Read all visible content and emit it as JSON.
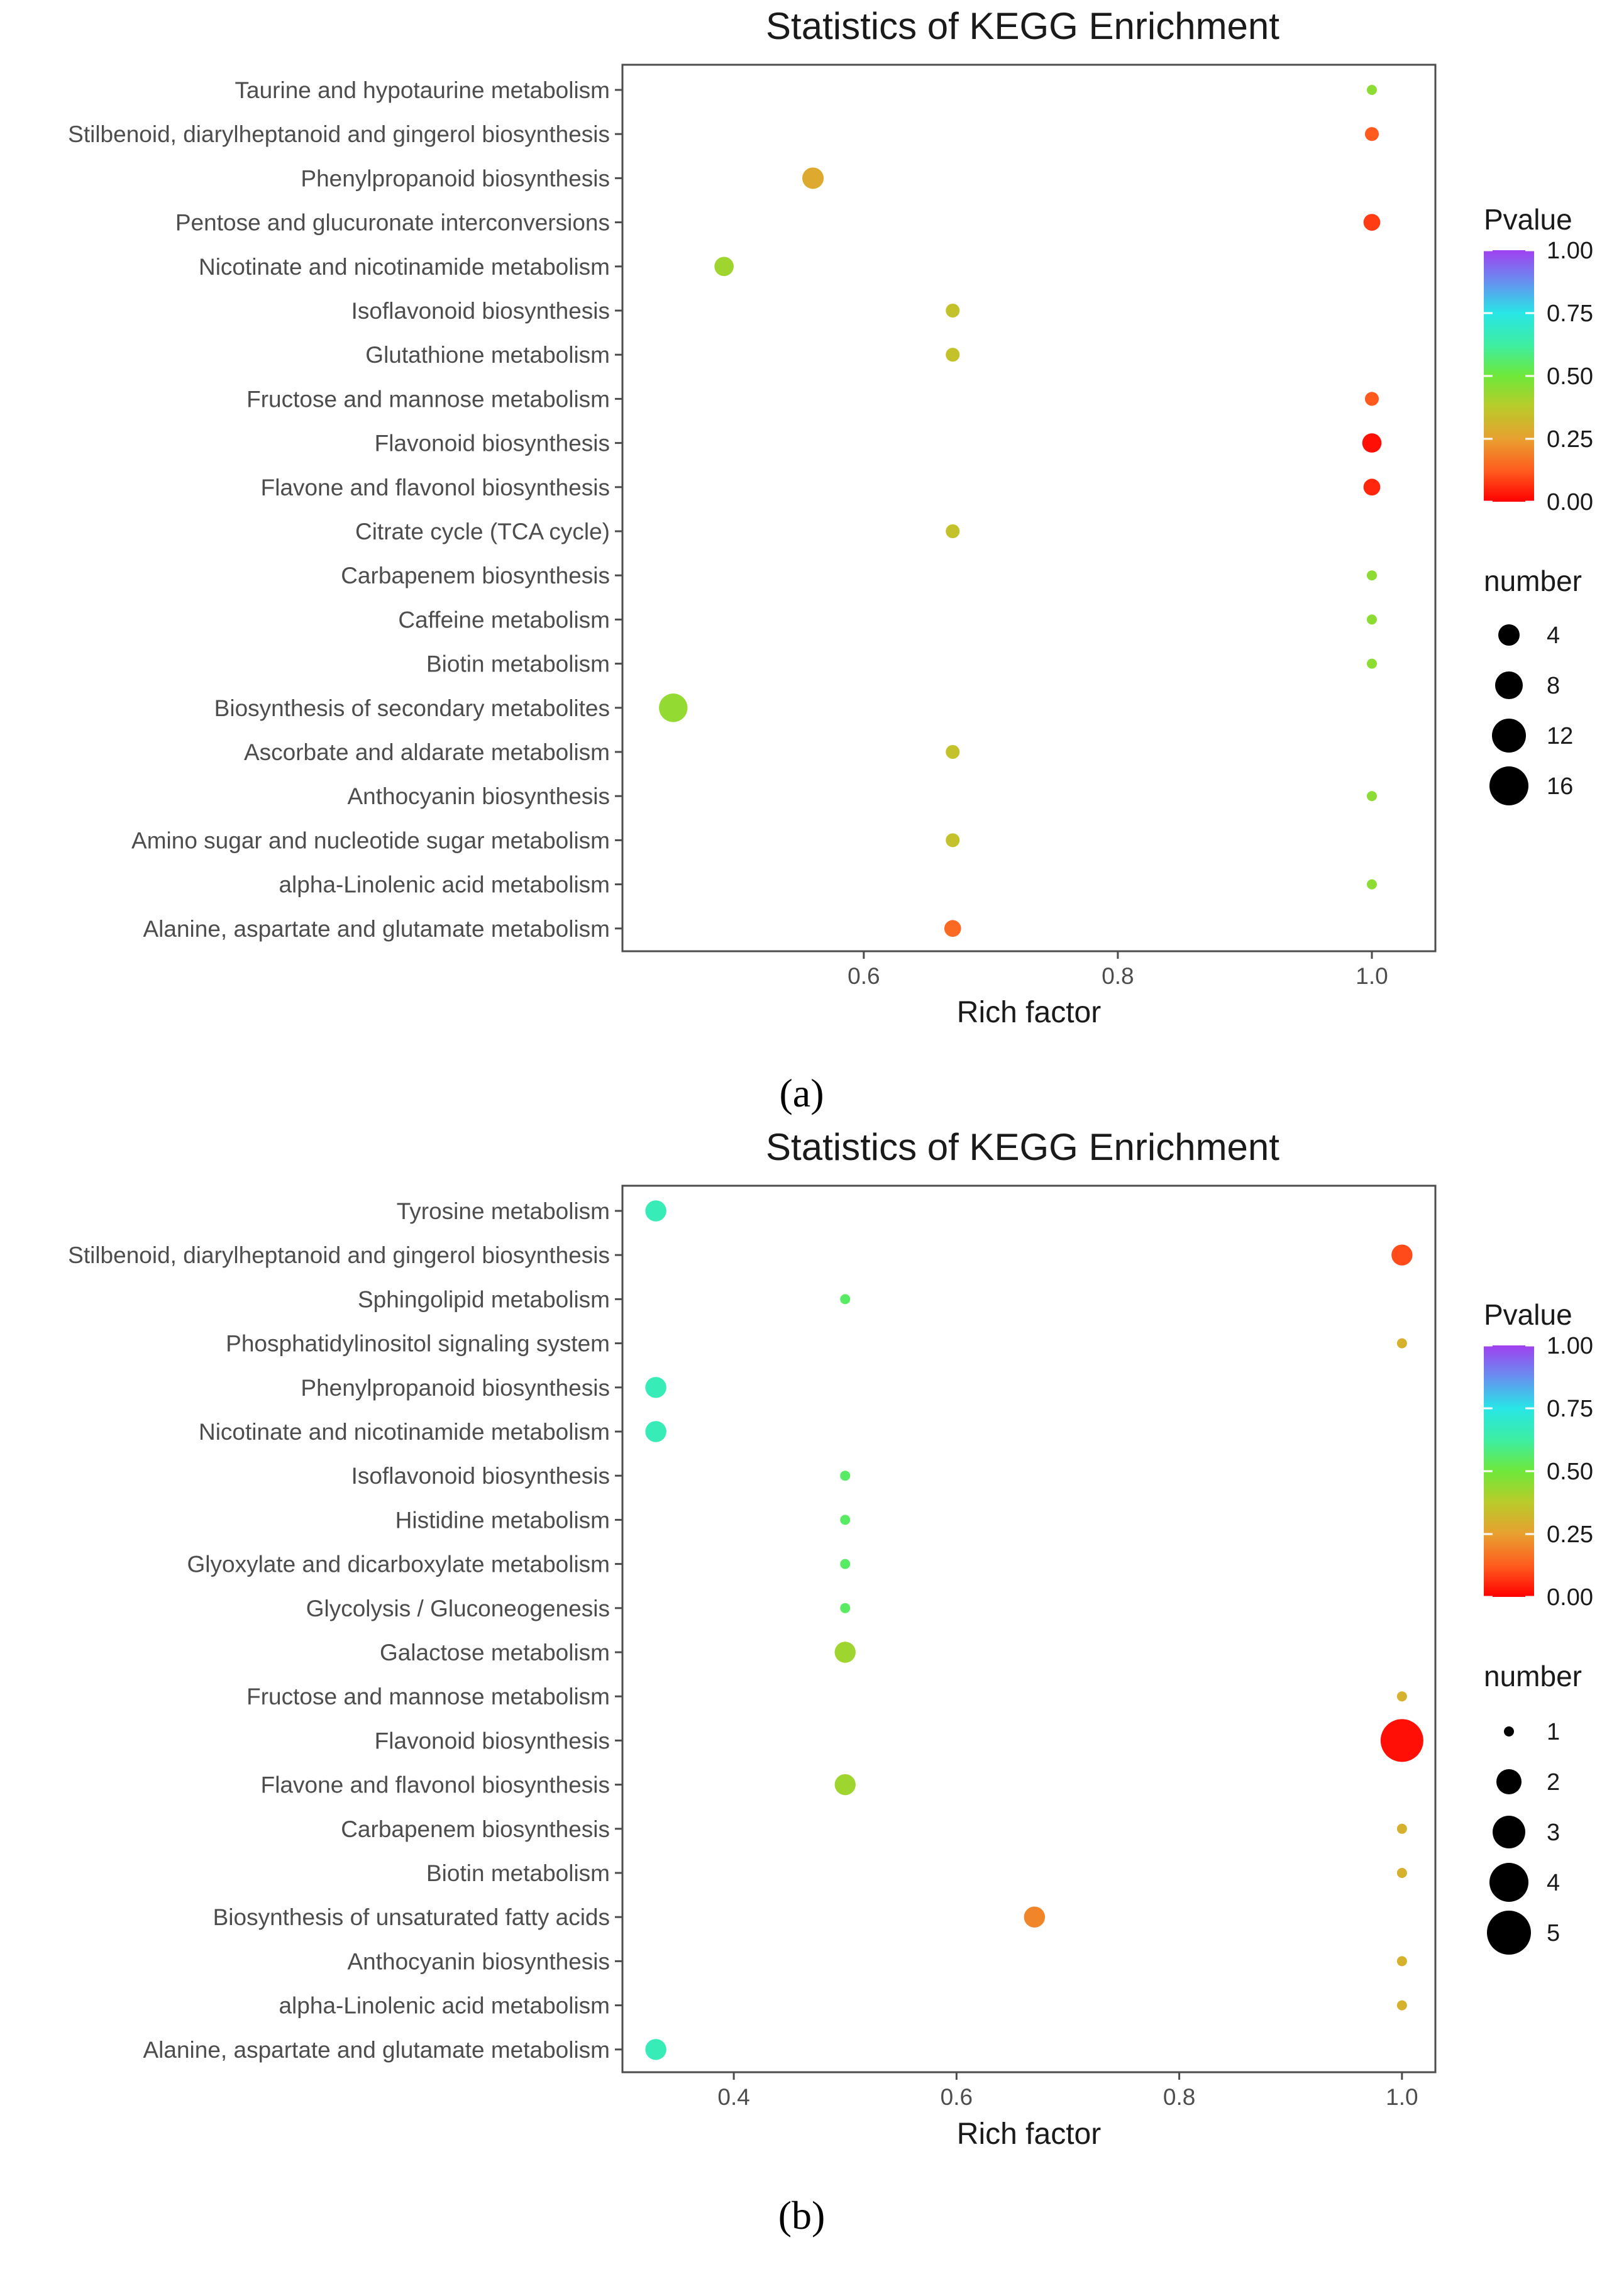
{
  "chart_data": [
    {
      "type": "scatter",
      "panel_label": "(a)",
      "title": "Statistics of KEGG Enrichment",
      "xlabel": "Rich factor",
      "ylabel": "",
      "xlim": [
        0.41,
        1.05
      ],
      "xticks": [
        0.6,
        0.8,
        1.0
      ],
      "xtick_labels": [
        "0.6",
        "0.8",
        "1.0"
      ],
      "color_legend": {
        "title": "Pvalue",
        "ticks": [
          "1.00",
          "0.75",
          "0.50",
          "0.25",
          "0.00"
        ],
        "tick_values": [
          1.0,
          0.75,
          0.5,
          0.25,
          0.0
        ]
      },
      "size_legend": {
        "title": "number",
        "values": [
          4,
          8,
          12,
          16
        ],
        "labels": [
          "4",
          "8",
          "12",
          "16"
        ]
      },
      "categories": [
        "Taurine and hypotaurine metabolism",
        "Stilbenoid, diarylheptanoid and gingerol biosynthesis",
        "Phenylpropanoid biosynthesis",
        "Pentose and glucuronate interconversions",
        "Nicotinate and nicotinamide metabolism",
        "Isoflavonoid biosynthesis",
        "Glutathione metabolism",
        "Fructose and mannose metabolism",
        "Flavonoid biosynthesis",
        "Flavone and flavonol biosynthesis",
        "Citrate cycle (TCA cycle)",
        "Carbapenem biosynthesis",
        "Caffeine metabolism",
        "Biotin metabolism",
        "Biosynthesis of secondary metabolites",
        "Ascorbate and aldarate metabolism",
        "Anthocyanin biosynthesis",
        "Amino sugar and nucleotide sugar metabolism",
        "alpha-Linolenic acid metabolism",
        "Alanine, aspartate and glutamate metabolism"
      ],
      "rich_factor": [
        1.0,
        1.0,
        0.56,
        1.0,
        0.49,
        0.67,
        0.67,
        1.0,
        1.0,
        1.0,
        0.67,
        1.0,
        1.0,
        1.0,
        0.45,
        0.67,
        1.0,
        0.67,
        1.0,
        0.67
      ],
      "number": [
        1,
        2,
        5,
        3,
        4,
        2,
        2,
        2,
        4,
        3,
        2,
        1,
        1,
        1,
        9,
        2,
        1,
        2,
        1,
        3
      ],
      "pvalue": [
        0.45,
        0.12,
        0.28,
        0.08,
        0.42,
        0.35,
        0.35,
        0.12,
        0.02,
        0.05,
        0.35,
        0.45,
        0.45,
        0.45,
        0.44,
        0.35,
        0.45,
        0.35,
        0.45,
        0.15
      ]
    },
    {
      "type": "scatter",
      "panel_label": "(b)",
      "title": "Statistics of KEGG Enrichment",
      "xlabel": "Rich factor",
      "ylabel": "",
      "xlim": [
        0.3,
        1.03
      ],
      "xticks": [
        0.4,
        0.6,
        0.8,
        1.0
      ],
      "xtick_labels": [
        "0.4",
        "0.6",
        "0.8",
        "1.0"
      ],
      "color_legend": {
        "title": "Pvalue",
        "ticks": [
          "1.00",
          "0.75",
          "0.50",
          "0.25",
          "0.00"
        ],
        "tick_values": [
          1.0,
          0.75,
          0.5,
          0.25,
          0.0
        ]
      },
      "size_legend": {
        "title": "number",
        "values": [
          1,
          2,
          3,
          4,
          5
        ],
        "labels": [
          "1",
          "2",
          "3",
          "4",
          "5"
        ]
      },
      "categories": [
        "Tyrosine metabolism",
        "Stilbenoid, diarylheptanoid and gingerol biosynthesis",
        "Sphingolipid metabolism",
        "Phosphatidylinositol signaling system",
        "Phenylpropanoid biosynthesis",
        "Nicotinate and nicotinamide metabolism",
        "Isoflavonoid biosynthesis",
        "Histidine metabolism",
        "Glyoxylate and dicarboxylate metabolism",
        "Glycolysis / Gluconeogenesis",
        "Galactose metabolism",
        "Fructose and mannose metabolism",
        "Flavonoid biosynthesis",
        "Flavone and flavonol biosynthesis",
        "Carbapenem biosynthesis",
        "Biotin metabolism",
        "Biosynthesis of unsaturated fatty acids",
        "Anthocyanin biosynthesis",
        "alpha-Linolenic acid metabolism",
        "Alanine, aspartate and glutamate metabolism"
      ],
      "rich_factor": [
        0.33,
        1.0,
        0.5,
        1.0,
        0.33,
        0.33,
        0.5,
        0.5,
        0.5,
        0.5,
        0.5,
        1.0,
        1.0,
        0.5,
        1.0,
        1.0,
        0.67,
        1.0,
        1.0,
        0.33
      ],
      "number": [
        2,
        2,
        1,
        1,
        2,
        2,
        1,
        1,
        1,
        1,
        2,
        1,
        5,
        2,
        1,
        1,
        2,
        1,
        1,
        2
      ],
      "pvalue": [
        0.66,
        0.1,
        0.55,
        0.3,
        0.66,
        0.66,
        0.55,
        0.55,
        0.55,
        0.55,
        0.42,
        0.3,
        0.02,
        0.42,
        0.3,
        0.3,
        0.2,
        0.3,
        0.3,
        0.66
      ]
    }
  ]
}
